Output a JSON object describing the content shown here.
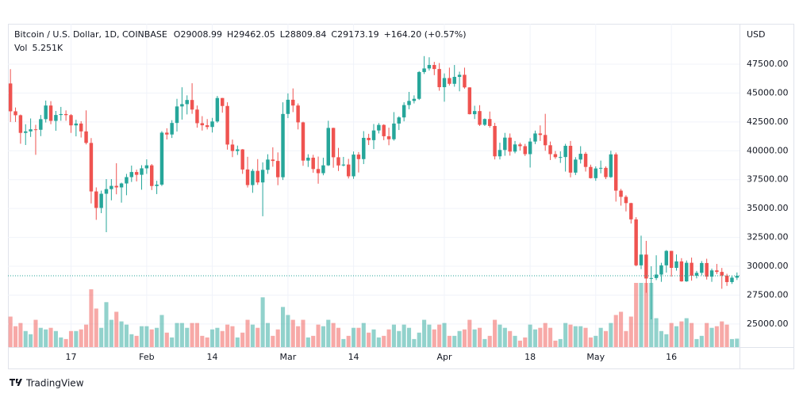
{
  "chart_data": {
    "type": "candlestick",
    "title": "Bitcoin / U.S. Dollar, 1D, COINBASE",
    "ohlc_legend": [
      {
        "label": "O",
        "value": "29008.99"
      },
      {
        "label": "H",
        "value": "29462.05"
      },
      {
        "label": "L",
        "value": "28809.84"
      },
      {
        "label": "C",
        "value": "29173.19"
      }
    ],
    "change": "+164.20 (+0.57%)",
    "volume_label": "Vol",
    "volume_value_label": "5.251K",
    "y_axis_label": "USD",
    "up_color": "#26a69a",
    "down_color": "#ef5350",
    "grid": true,
    "ylim": [
      23000,
      51000
    ],
    "yticks": [
      {
        "value": 25000,
        "label": "25000.00"
      },
      {
        "value": 27500,
        "label": "27500.00"
      },
      {
        "value": 30000,
        "label": "30000.00"
      },
      {
        "value": 32500,
        "label": "32500.00"
      },
      {
        "value": 35000,
        "label": "35000.00"
      },
      {
        "value": 37500,
        "label": "37500.00"
      },
      {
        "value": 40000,
        "label": "40000.00"
      },
      {
        "value": 42500,
        "label": "42500.00"
      },
      {
        "value": 45000,
        "label": "45000.00"
      },
      {
        "value": 47500,
        "label": "47500.00"
      }
    ],
    "xticks": [
      {
        "value": "Jan 17",
        "label": "17"
      },
      {
        "value": "Feb 1",
        "label": "Feb"
      },
      {
        "value": "Feb 14",
        "label": "14"
      },
      {
        "value": "Mar 1",
        "label": "Mar"
      },
      {
        "value": "Mar 14",
        "label": "14"
      },
      {
        "value": "Apr 1",
        "label": "Apr"
      },
      {
        "value": "Apr 18",
        "label": "18"
      },
      {
        "value": "May 1",
        "label": "May"
      },
      {
        "value": "May 16",
        "label": "16"
      }
    ],
    "categories": [
      "Jan 5",
      "Jan 6",
      "Jan 7",
      "Jan 8",
      "Jan 9",
      "Jan 10",
      "Jan 11",
      "Jan 12",
      "Jan 13",
      "Jan 14",
      "Jan 15",
      "Jan 16",
      "Jan 17",
      "Jan 18",
      "Jan 19",
      "Jan 20",
      "Jan 21",
      "Jan 22",
      "Jan 23",
      "Jan 24",
      "Jan 25",
      "Jan 26",
      "Jan 27",
      "Jan 28",
      "Jan 29",
      "Jan 30",
      "Jan 31",
      "Feb 1",
      "Feb 2",
      "Feb 3",
      "Feb 4",
      "Feb 5",
      "Feb 6",
      "Feb 7",
      "Feb 8",
      "Feb 9",
      "Feb 10",
      "Feb 11",
      "Feb 12",
      "Feb 13",
      "Feb 14",
      "Feb 15",
      "Feb 16",
      "Feb 17",
      "Feb 18",
      "Feb 19",
      "Feb 20",
      "Feb 21",
      "Feb 22",
      "Feb 23",
      "Feb 24",
      "Feb 25",
      "Feb 26",
      "Feb 27",
      "Feb 28",
      "Mar 1",
      "Mar 2",
      "Mar 3",
      "Mar 4",
      "Mar 5",
      "Mar 6",
      "Mar 7",
      "Mar 8",
      "Mar 9",
      "Mar 10",
      "Mar 11",
      "Mar 12",
      "Mar 13",
      "Mar 14",
      "Mar 15",
      "Mar 16",
      "Mar 17",
      "Mar 18",
      "Mar 19",
      "Mar 20",
      "Mar 21",
      "Mar 22",
      "Mar 23",
      "Mar 24",
      "Mar 25",
      "Mar 26",
      "Mar 27",
      "Mar 28",
      "Mar 29",
      "Mar 30",
      "Mar 31",
      "Apr 1",
      "Apr 2",
      "Apr 3",
      "Apr 4",
      "Apr 5",
      "Apr 6",
      "Apr 7",
      "Apr 8",
      "Apr 9",
      "Apr 10",
      "Apr 11",
      "Apr 12",
      "Apr 13",
      "Apr 14",
      "Apr 15",
      "Apr 16",
      "Apr 17",
      "Apr 18",
      "Apr 19",
      "Apr 20",
      "Apr 21",
      "Apr 22",
      "Apr 23",
      "Apr 24",
      "Apr 25",
      "Apr 26",
      "Apr 27",
      "Apr 28",
      "Apr 29",
      "Apr 30",
      "May 1",
      "May 2",
      "May 3",
      "May 4",
      "May 5",
      "May 6",
      "May 7",
      "May 8",
      "May 9",
      "May 10",
      "May 11",
      "May 12",
      "May 13",
      "May 14",
      "May 15",
      "May 16",
      "May 17",
      "May 18",
      "May 19",
      "May 20",
      "May 21",
      "May 22",
      "May 23",
      "May 24",
      "May 25",
      "May 26",
      "May 27",
      "May 28",
      "May 29"
    ],
    "open": [
      45830,
      43420,
      43080,
      41550,
      41680,
      41860,
      41820,
      42740,
      43920,
      42590,
      43100,
      43180,
      43090,
      42200,
      42360,
      41680,
      40680,
      36480,
      35050,
      36280,
      36680,
      36960,
      36830,
      37170,
      37720,
      38160,
      37920,
      38480,
      38740,
      36950,
      37070,
      41570,
      41410,
      42410,
      43840,
      44040,
      44400,
      43570,
      42390,
      42210,
      42060,
      42540,
      44570,
      43880,
      40540,
      39980,
      40120,
      38380,
      37030,
      38260,
      37260,
      38350,
      39240,
      39120,
      37710,
      43190,
      44420,
      43920,
      42460,
      39150,
      39400,
      38420,
      38060,
      38740,
      41980,
      39440,
      38730,
      38810,
      37790,
      39670,
      39280,
      41120,
      40920,
      41760,
      42240,
      41260,
      41000,
      42360,
      42890,
      43960,
      44320,
      44500,
      46820,
      47130,
      47430,
      47080,
      45510,
      46300,
      45800,
      46400,
      46580,
      45490,
      43170,
      43440,
      42250,
      42750,
      42150,
      39520,
      40070,
      41140,
      39930,
      40550,
      40400,
      39710,
      40800,
      41500,
      41370,
      40480,
      39710,
      39450,
      39460,
      40430,
      38110,
      39240,
      39740,
      38600,
      37630,
      38470,
      38520,
      37720,
      39690,
      36550,
      36010,
      35470,
      34060,
      30080,
      31010,
      28940,
      28980,
      29280,
      30080,
      31330,
      29860,
      30420,
      28690,
      30300,
      29180,
      29430,
      30280,
      29100,
      29640,
      29510,
      29190,
      28630,
      29008.99
    ],
    "high": [
      47070,
      43750,
      43140,
      42300,
      42800,
      42250,
      43100,
      44350,
      44300,
      43450,
      43800,
      43500,
      43180,
      42690,
      42560,
      43500,
      41100,
      36830,
      36550,
      37550,
      37550,
      38920,
      37240,
      38000,
      38720,
      38370,
      38750,
      39260,
      38850,
      37400,
      41700,
      41950,
      42650,
      44500,
      45500,
      44800,
      45850,
      43920,
      43000,
      42750,
      42850,
      44750,
      44580,
      44200,
      40970,
      40450,
      40150,
      39480,
      38420,
      39280,
      39000,
      39700,
      40300,
      39860,
      44200,
      44970,
      45400,
      44100,
      42520,
      39700,
      39650,
      39500,
      39400,
      42600,
      42000,
      40250,
      39470,
      39300,
      39940,
      39890,
      41700,
      41470,
      42320,
      42400,
      42300,
      42000,
      43350,
      42990,
      44200,
      45100,
      44800,
      46900,
      48200,
      48100,
      47700,
      47600,
      46700,
      47200,
      47430,
      46850,
      47200,
      45500,
      43900,
      43950,
      42800,
      43400,
      42420,
      40700,
      41550,
      41500,
      40850,
      40700,
      40600,
      41100,
      41750,
      42200,
      43200,
      40800,
      39980,
      39950,
      40600,
      40850,
      39450,
      40400,
      39900,
      38800,
      38650,
      39150,
      38650,
      40000,
      39850,
      36700,
      36150,
      35500,
      34250,
      32650,
      32200,
      30000,
      30950,
      30300,
      31400,
      31330,
      31020,
      30700,
      30500,
      30750,
      29600,
      30450,
      30650,
      29800,
      30200,
      29850,
      29350,
      29200,
      29462.05
    ],
    "low": [
      42500,
      42500,
      40610,
      40500,
      41200,
      39650,
      41270,
      42450,
      42300,
      41730,
      42600,
      42600,
      41550,
      41250,
      41150,
      40550,
      35440,
      34020,
      34600,
      32950,
      35710,
      36230,
      35510,
      36150,
      37300,
      37350,
      36630,
      38000,
      36600,
      36250,
      36950,
      40980,
      41110,
      41670,
      42700,
      43150,
      43200,
      42000,
      41750,
      41850,
      41580,
      42430,
      43300,
      40100,
      39450,
      39640,
      38000,
      36820,
      36360,
      37050,
      34330,
      38000,
      38620,
      37020,
      37470,
      42830,
      43350,
      41850,
      38700,
      38600,
      38100,
      37150,
      37880,
      38680,
      38530,
      38250,
      38650,
      37600,
      37570,
      38120,
      38850,
      40500,
      40150,
      41500,
      40920,
      40480,
      40880,
      41800,
      42550,
      43600,
      44100,
      44400,
      46650,
      46950,
      46550,
      45200,
      44250,
      45650,
      45550,
      45150,
      45380,
      43150,
      42750,
      42150,
      42150,
      42000,
      39250,
      39250,
      39570,
      39580,
      39780,
      40020,
      39550,
      38550,
      40580,
      40850,
      40000,
      39200,
      39300,
      38950,
      38200,
      37700,
      37900,
      38900,
      38200,
      37600,
      37400,
      38050,
      37550,
      37650,
      35600,
      35250,
      34750,
      33700,
      30000,
      29750,
      27700,
      25400,
      28800,
      28650,
      29450,
      29100,
      29620,
      28660,
      28650,
      28750,
      28950,
      29220,
      28850,
      28650,
      29320,
      28050,
      28300,
      28470,
      28809.84
    ],
    "close": [
      43420,
      43080,
      41550,
      41680,
      41860,
      41820,
      42740,
      43920,
      42590,
      43100,
      43180,
      43090,
      42200,
      42360,
      41680,
      40680,
      36480,
      35050,
      36280,
      36680,
      36960,
      36830,
      37170,
      37720,
      38160,
      37920,
      38480,
      38740,
      36950,
      37070,
      41570,
      41410,
      42410,
      43840,
      44040,
      44400,
      43570,
      42390,
      42210,
      42060,
      42540,
      44570,
      43880,
      40540,
      39980,
      40120,
      38380,
      37030,
      38260,
      37260,
      38350,
      39240,
      39120,
      37710,
      43190,
      44420,
      43920,
      42460,
      39150,
      39400,
      38420,
      38060,
      38740,
      41980,
      39440,
      38730,
      38810,
      37790,
      39670,
      39280,
      41120,
      40920,
      41760,
      42240,
      41260,
      41000,
      42360,
      42890,
      43960,
      44320,
      44500,
      46820,
      47130,
      47430,
      47080,
      45510,
      46300,
      45800,
      46400,
      46580,
      45490,
      43170,
      43440,
      42250,
      42750,
      42150,
      39520,
      40070,
      41140,
      39930,
      40550,
      40400,
      39710,
      40800,
      41500,
      41370,
      40480,
      39710,
      39450,
      39460,
      40430,
      38110,
      39240,
      39740,
      38600,
      37630,
      38470,
      38520,
      37720,
      39690,
      36550,
      36010,
      35470,
      34060,
      30080,
      31010,
      28940,
      28980,
      29280,
      30080,
      31330,
      29860,
      30420,
      28690,
      30300,
      29180,
      29430,
      30280,
      29100,
      29640,
      29510,
      29190,
      28630,
      29008.99,
      29173.19
    ],
    "volume": [
      19,
      13,
      15,
      10,
      8,
      17,
      12,
      11,
      12,
      10,
      6,
      5,
      10,
      10,
      11,
      14,
      36,
      24,
      12,
      28,
      17,
      22,
      16,
      14,
      8,
      7,
      13,
      13,
      11,
      12,
      20,
      9,
      6,
      15,
      15,
      12,
      15,
      15,
      7,
      6,
      11,
      12,
      10,
      14,
      13,
      6,
      9,
      17,
      14,
      12,
      31,
      15,
      7,
      11,
      25,
      20,
      17,
      13,
      17,
      6,
      7,
      14,
      13,
      17,
      15,
      12,
      5,
      7,
      12,
      12,
      15,
      9,
      11,
      6,
      7,
      11,
      14,
      10,
      14,
      12,
      5,
      9,
      17,
      14,
      11,
      14,
      15,
      7,
      7,
      10,
      11,
      17,
      11,
      12,
      5,
      7,
      17,
      14,
      12,
      10,
      7,
      4,
      6,
      14,
      11,
      12,
      15,
      12,
      4,
      5,
      15,
      14,
      13,
      13,
      12,
      6,
      7,
      12,
      10,
      15,
      20,
      22,
      10,
      19,
      40,
      40,
      40,
      40,
      18,
      10,
      8,
      15,
      13,
      16,
      18,
      15,
      5,
      7,
      15,
      12,
      13,
      16,
      14,
      5,
      5.251
    ]
  },
  "brand": "TradingView"
}
